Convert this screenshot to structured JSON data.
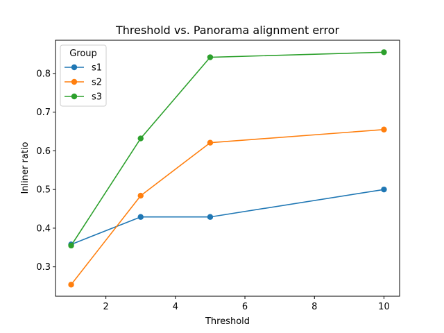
{
  "chart_data": {
    "type": "line",
    "title": "Threshold vs. Panorama alignment error",
    "xlabel": "Threshold",
    "ylabel": "Inliner ratio",
    "xlim": [
      0.55,
      10.45
    ],
    "ylim": [
      0.224,
      0.886
    ],
    "xticks": [
      2,
      4,
      6,
      8,
      10
    ],
    "yticks": [
      0.3,
      0.4,
      0.5,
      0.6,
      0.7,
      0.8
    ],
    "grid": false,
    "legend": {
      "title": "Group",
      "placement": "top-left"
    },
    "x": [
      1,
      3,
      5,
      10
    ],
    "series": [
      {
        "name": "s1",
        "color": "#1f77b4",
        "values": [
          0.358,
          0.429,
          0.429,
          0.5
        ]
      },
      {
        "name": "s2",
        "color": "#ff7f0e",
        "values": [
          0.254,
          0.484,
          0.621,
          0.655
        ]
      },
      {
        "name": "s3",
        "color": "#2ca02c",
        "values": [
          0.355,
          0.632,
          0.842,
          0.855
        ]
      }
    ]
  }
}
